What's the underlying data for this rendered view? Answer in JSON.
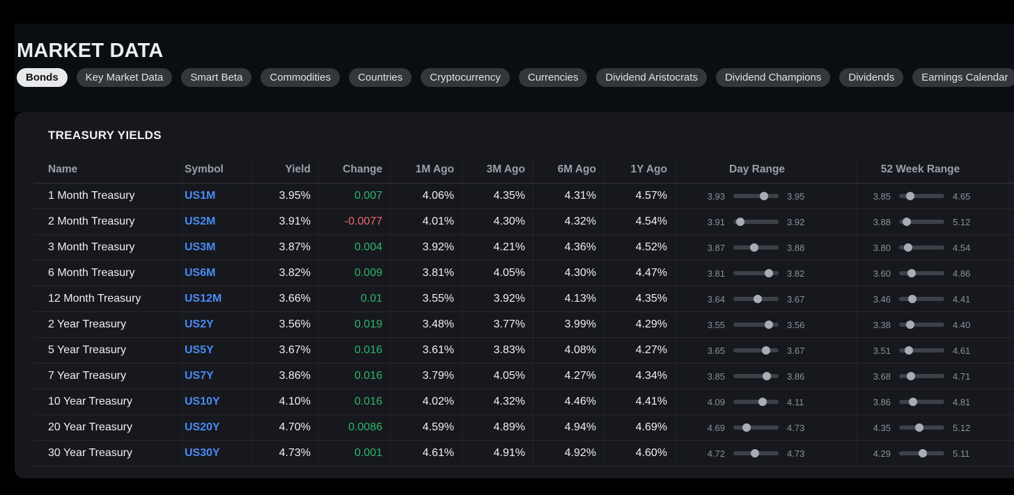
{
  "page": {
    "title": "MARKET DATA"
  },
  "colors": {
    "accent": "#4b8bf5",
    "positive": "#2fb56d",
    "negative": "#ee6a6d",
    "pill-bg": "#33363b",
    "pill-fg": "#e0e2e5",
    "pill-active-bg": "#e8e9eb",
    "pill-active-fg": "#101113"
  },
  "tabs": [
    {
      "label": "Bonds",
      "active": true
    },
    {
      "label": "Key Market Data",
      "active": false
    },
    {
      "label": "Smart Beta",
      "active": false
    },
    {
      "label": "Commodities",
      "active": false
    },
    {
      "label": "Countries",
      "active": false
    },
    {
      "label": "Cryptocurrency",
      "active": false
    },
    {
      "label": "Currencies",
      "active": false
    },
    {
      "label": "Dividend Aristocrats",
      "active": false
    },
    {
      "label": "Dividend Champions",
      "active": false
    },
    {
      "label": "Dividends",
      "active": false
    },
    {
      "label": "Earnings Calendar",
      "active": false
    }
  ],
  "panel": {
    "title": "TREASURY YIELDS",
    "columns": [
      "Name",
      "Symbol",
      "Yield",
      "Change",
      "1M Ago",
      "3M Ago",
      "6M Ago",
      "1Y Ago",
      "Day Range",
      "52 Week Range"
    ],
    "rows": [
      {
        "name": "1 Month Treasury",
        "symbol": "US1M",
        "yield": "3.95%",
        "change": "0.007",
        "m1": "4.06%",
        "m3": "4.35%",
        "m6": "4.31%",
        "y1": "4.57%",
        "day": {
          "low": "3.93",
          "high": "3.95",
          "frac": 0.72
        },
        "week52": {
          "low": "3.85",
          "high": "4.65",
          "frac": 0.18
        }
      },
      {
        "name": "2 Month Treasury",
        "symbol": "US2M",
        "yield": "3.91%",
        "change": "-0.0077",
        "m1": "4.01%",
        "m3": "4.30%",
        "m6": "4.32%",
        "y1": "4.54%",
        "day": {
          "low": "3.91",
          "high": "3.92",
          "frac": 0.08
        },
        "week52": {
          "low": "3.88",
          "high": "5.12",
          "frac": 0.1
        }
      },
      {
        "name": "3 Month Treasury",
        "symbol": "US3M",
        "yield": "3.87%",
        "change": "0.004",
        "m1": "3.92%",
        "m3": "4.21%",
        "m6": "4.36%",
        "y1": "4.52%",
        "day": {
          "low": "3.87",
          "high": "3.88",
          "frac": 0.45
        },
        "week52": {
          "low": "3.80",
          "high": "4.54",
          "frac": 0.14
        }
      },
      {
        "name": "6 Month Treasury",
        "symbol": "US6M",
        "yield": "3.82%",
        "change": "0.009",
        "m1": "3.81%",
        "m3": "4.05%",
        "m6": "4.30%",
        "y1": "4.47%",
        "day": {
          "low": "3.81",
          "high": "3.82",
          "frac": 0.85
        },
        "week52": {
          "low": "3.60",
          "high": "4.86",
          "frac": 0.22
        }
      },
      {
        "name": "12 Month Treasury",
        "symbol": "US12M",
        "yield": "3.66%",
        "change": "0.01",
        "m1": "3.55%",
        "m3": "3.92%",
        "m6": "4.13%",
        "y1": "4.35%",
        "day": {
          "low": "3.64",
          "high": "3.67",
          "frac": 0.55
        },
        "week52": {
          "low": "3.46",
          "high": "4.41",
          "frac": 0.25
        }
      },
      {
        "name": "2 Year Treasury",
        "symbol": "US2Y",
        "yield": "3.56%",
        "change": "0.019",
        "m1": "3.48%",
        "m3": "3.77%",
        "m6": "3.99%",
        "y1": "4.29%",
        "day": {
          "low": "3.55",
          "high": "3.56",
          "frac": 0.85
        },
        "week52": {
          "low": "3.38",
          "high": "4.40",
          "frac": 0.18
        }
      },
      {
        "name": "5 Year Treasury",
        "symbol": "US5Y",
        "yield": "3.67%",
        "change": "0.016",
        "m1": "3.61%",
        "m3": "3.83%",
        "m6": "4.08%",
        "y1": "4.27%",
        "day": {
          "low": "3.65",
          "high": "3.67",
          "frac": 0.78
        },
        "week52": {
          "low": "3.51",
          "high": "4.61",
          "frac": 0.15
        }
      },
      {
        "name": "7 Year Treasury",
        "symbol": "US7Y",
        "yield": "3.86%",
        "change": "0.016",
        "m1": "3.79%",
        "m3": "4.05%",
        "m6": "4.27%",
        "y1": "4.34%",
        "day": {
          "low": "3.85",
          "high": "3.86",
          "frac": 0.8
        },
        "week52": {
          "low": "3.68",
          "high": "4.71",
          "frac": 0.2
        }
      },
      {
        "name": "10 Year Treasury",
        "symbol": "US10Y",
        "yield": "4.10%",
        "change": "0.016",
        "m1": "4.02%",
        "m3": "4.32%",
        "m6": "4.46%",
        "y1": "4.41%",
        "day": {
          "low": "4.09",
          "high": "4.11",
          "frac": 0.68
        },
        "week52": {
          "low": "3.86",
          "high": "4.81",
          "frac": 0.26
        }
      },
      {
        "name": "20 Year Treasury",
        "symbol": "US20Y",
        "yield": "4.70%",
        "change": "0.0086",
        "m1": "4.59%",
        "m3": "4.89%",
        "m6": "4.94%",
        "y1": "4.69%",
        "day": {
          "low": "4.69",
          "high": "4.73",
          "frac": 0.25
        },
        "week52": {
          "low": "4.35",
          "high": "5.12",
          "frac": 0.44
        }
      },
      {
        "name": "30 Year Treasury",
        "symbol": "US30Y",
        "yield": "4.73%",
        "change": "0.001",
        "m1": "4.61%",
        "m3": "4.91%",
        "m6": "4.92%",
        "y1": "4.60%",
        "day": {
          "low": "4.72",
          "high": "4.73",
          "frac": 0.48
        },
        "week52": {
          "low": "4.29",
          "high": "5.11",
          "frac": 0.52
        }
      }
    ]
  }
}
